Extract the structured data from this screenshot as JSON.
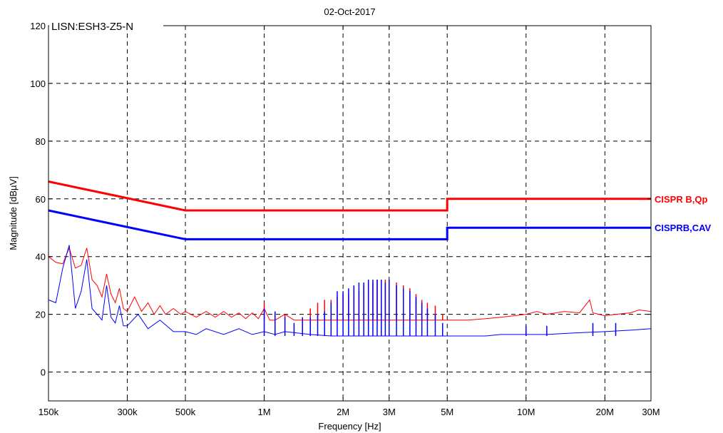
{
  "chart_data": {
    "type": "line",
    "title": "02-Oct-2017",
    "annotation": "LISN:ESH3-Z5-N",
    "xlabel": "Frequency [Hz]",
    "ylabel": "Magnitude [dBµV]",
    "xscale": "log",
    "xlim": [
      150000,
      30000000
    ],
    "ylim": [
      -10,
      120
    ],
    "grid": true,
    "x_ticks": [
      {
        "value": 150000,
        "label": "150k"
      },
      {
        "value": 300000,
        "label": "300k"
      },
      {
        "value": 500000,
        "label": "500k"
      },
      {
        "value": 1000000,
        "label": "1M"
      },
      {
        "value": 2000000,
        "label": "2M"
      },
      {
        "value": 3000000,
        "label": "3M"
      },
      {
        "value": 5000000,
        "label": "5M"
      },
      {
        "value": 10000000,
        "label": "10M"
      },
      {
        "value": 20000000,
        "label": "20M"
      },
      {
        "value": 30000000,
        "label": "30M"
      }
    ],
    "y_ticks": [
      {
        "value": 0,
        "label": "0"
      },
      {
        "value": 20,
        "label": "20"
      },
      {
        "value": 40,
        "label": "40"
      },
      {
        "value": 60,
        "label": "60"
      },
      {
        "value": 80,
        "label": "80"
      },
      {
        "value": 100,
        "label": "100"
      },
      {
        "value": 120,
        "label": "120"
      }
    ],
    "limits": [
      {
        "name": "CISPR B,Qp",
        "color": "#ff0000",
        "points": [
          [
            150000,
            66
          ],
          [
            500000,
            56
          ],
          [
            5000000,
            56
          ],
          [
            5000000,
            60
          ],
          [
            30000000,
            60
          ]
        ]
      },
      {
        "name": "CISPRB,CAV",
        "color": "#0000ff",
        "points": [
          [
            150000,
            56
          ],
          [
            500000,
            46
          ],
          [
            5000000,
            46
          ],
          [
            5000000,
            50
          ],
          [
            30000000,
            50
          ]
        ]
      }
    ],
    "series": [
      {
        "color": "#ff0000",
        "points": [
          [
            150000,
            40
          ],
          [
            160000,
            38
          ],
          [
            170000,
            37.5
          ],
          [
            180000,
            43
          ],
          [
            190000,
            36
          ],
          [
            200000,
            37
          ],
          [
            210000,
            43
          ],
          [
            220000,
            32
          ],
          [
            230000,
            30
          ],
          [
            240000,
            26
          ],
          [
            250000,
            34
          ],
          [
            260000,
            27
          ],
          [
            270000,
            24
          ],
          [
            280000,
            29
          ],
          [
            290000,
            22
          ],
          [
            300000,
            21
          ],
          [
            320000,
            26
          ],
          [
            340000,
            21
          ],
          [
            360000,
            24
          ],
          [
            380000,
            20
          ],
          [
            400000,
            23
          ],
          [
            420000,
            20
          ],
          [
            450000,
            22
          ],
          [
            480000,
            20
          ],
          [
            500000,
            21
          ],
          [
            550000,
            19
          ],
          [
            600000,
            21
          ],
          [
            650000,
            19
          ],
          [
            700000,
            21
          ],
          [
            750000,
            19
          ],
          [
            800000,
            20.5
          ],
          [
            850000,
            18.5
          ],
          [
            900000,
            20.5
          ],
          [
            950000,
            18.5
          ],
          [
            1000000,
            22
          ],
          [
            1050000,
            18
          ],
          [
            1100000,
            18
          ],
          [
            1200000,
            20
          ],
          [
            1300000,
            18
          ],
          [
            1500000,
            18
          ],
          [
            1800000,
            18
          ],
          [
            2000000,
            18
          ],
          [
            2500000,
            18
          ],
          [
            3000000,
            18
          ],
          [
            3500000,
            18
          ],
          [
            4000000,
            18
          ],
          [
            4500000,
            18
          ],
          [
            5000000,
            18
          ],
          [
            6000000,
            18
          ],
          [
            7000000,
            18.5
          ],
          [
            8000000,
            19
          ],
          [
            9000000,
            19.5
          ],
          [
            10000000,
            20
          ],
          [
            11000000,
            21
          ],
          [
            12000000,
            20
          ],
          [
            14000000,
            21
          ],
          [
            16000000,
            20.5
          ],
          [
            17500000,
            25
          ],
          [
            18000000,
            20.5
          ],
          [
            20000000,
            19.5
          ],
          [
            22000000,
            20
          ],
          [
            25000000,
            20.5
          ],
          [
            27000000,
            21.5
          ],
          [
            30000000,
            21
          ]
        ]
      },
      {
        "color": "#0000ff",
        "points": [
          [
            150000,
            25
          ],
          [
            160000,
            24
          ],
          [
            170000,
            36
          ],
          [
            180000,
            44
          ],
          [
            190000,
            22
          ],
          [
            200000,
            28
          ],
          [
            210000,
            39
          ],
          [
            220000,
            22
          ],
          [
            230000,
            20
          ],
          [
            240000,
            18
          ],
          [
            250000,
            30
          ],
          [
            260000,
            19
          ],
          [
            270000,
            17
          ],
          [
            280000,
            23
          ],
          [
            290000,
            16
          ],
          [
            300000,
            16
          ],
          [
            330000,
            20
          ],
          [
            360000,
            15
          ],
          [
            400000,
            18
          ],
          [
            450000,
            14
          ],
          [
            500000,
            14
          ],
          [
            550000,
            13
          ],
          [
            600000,
            15
          ],
          [
            700000,
            13
          ],
          [
            800000,
            15
          ],
          [
            900000,
            13
          ],
          [
            1000000,
            14
          ],
          [
            1100000,
            13
          ],
          [
            1200000,
            14
          ],
          [
            1500000,
            13
          ],
          [
            1800000,
            12.5
          ],
          [
            2000000,
            12.5
          ],
          [
            2500000,
            12.5
          ],
          [
            3000000,
            12.5
          ],
          [
            3500000,
            12.5
          ],
          [
            4000000,
            12.5
          ],
          [
            5000000,
            12.5
          ],
          [
            6000000,
            12.5
          ],
          [
            7000000,
            12.5
          ],
          [
            8000000,
            13
          ],
          [
            10000000,
            13
          ],
          [
            12000000,
            13
          ],
          [
            15000000,
            13.5
          ],
          [
            20000000,
            14
          ],
          [
            25000000,
            14.5
          ],
          [
            30000000,
            15
          ]
        ]
      }
    ],
    "spikes": [
      {
        "color": "#ff0000",
        "points": [
          [
            1000000,
            24
          ],
          [
            1100000,
            20
          ],
          [
            1200000,
            20
          ],
          [
            1300000,
            18
          ],
          [
            1500000,
            22
          ],
          [
            1600000,
            24
          ],
          [
            1700000,
            25
          ],
          [
            1800000,
            25
          ],
          [
            1900000,
            26
          ],
          [
            2000000,
            27
          ],
          [
            2100000,
            27
          ],
          [
            2200000,
            28
          ],
          [
            2300000,
            28
          ],
          [
            2400000,
            30
          ],
          [
            2500000,
            31
          ],
          [
            2600000,
            31
          ],
          [
            2700000,
            32
          ],
          [
            2800000,
            32
          ],
          [
            2900000,
            32
          ],
          [
            3000000,
            32
          ],
          [
            3200000,
            31
          ],
          [
            3400000,
            30
          ],
          [
            3600000,
            29
          ],
          [
            3800000,
            27
          ],
          [
            4000000,
            25
          ],
          [
            4200000,
            24
          ],
          [
            4500000,
            23
          ],
          [
            4800000,
            20
          ]
        ]
      },
      {
        "color": "#0000ff",
        "points": [
          [
            1000000,
            22
          ],
          [
            1100000,
            21
          ],
          [
            1200000,
            19
          ],
          [
            1300000,
            17
          ],
          [
            1400000,
            19
          ],
          [
            1500000,
            19
          ],
          [
            1600000,
            20
          ],
          [
            1700000,
            21
          ],
          [
            1800000,
            24
          ],
          [
            1900000,
            28
          ],
          [
            2000000,
            28
          ],
          [
            2100000,
            29
          ],
          [
            2200000,
            30
          ],
          [
            2300000,
            31
          ],
          [
            2400000,
            31
          ],
          [
            2500000,
            32
          ],
          [
            2600000,
            32
          ],
          [
            2700000,
            32
          ],
          [
            2800000,
            32
          ],
          [
            2900000,
            31
          ],
          [
            3000000,
            32
          ],
          [
            3200000,
            30
          ],
          [
            3400000,
            29
          ],
          [
            3600000,
            28
          ],
          [
            3800000,
            26
          ],
          [
            4000000,
            24
          ],
          [
            4200000,
            22
          ],
          [
            4500000,
            20
          ],
          [
            4800000,
            17
          ],
          [
            10000000,
            16
          ],
          [
            12000000,
            16
          ],
          [
            18000000,
            17
          ],
          [
            22000000,
            17
          ]
        ]
      }
    ]
  }
}
